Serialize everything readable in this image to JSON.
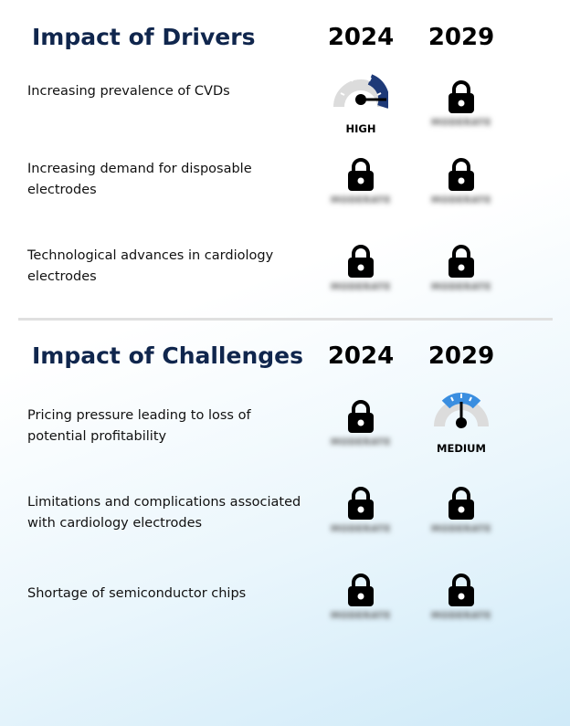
{
  "drivers": {
    "title": "Impact of Drivers",
    "year_1": "2024",
    "year_2": "2029",
    "rows": [
      {
        "label": "Increasing prevalence of CVDs",
        "y2024": "HIGH",
        "y2029": "locked"
      },
      {
        "label": "Increasing demand for disposable electrodes",
        "y2024": "locked",
        "y2029": "locked"
      },
      {
        "label": "Technological advances in cardiology electrodes",
        "y2024": "locked",
        "y2029": "locked"
      }
    ]
  },
  "challenges": {
    "title": "Impact of Challenges",
    "year_1": "2024",
    "year_2": "2029",
    "rows": [
      {
        "label": "Pricing pressure leading to loss of potential profitability",
        "y2024": "locked",
        "y2029": "MEDIUM"
      },
      {
        "label": "Limitations and complications associated with cardiology electrodes",
        "y2024": "locked",
        "y2029": "locked"
      },
      {
        "label": "Shortage of semiconductor chips",
        "y2024": "locked",
        "y2029": "locked"
      }
    ]
  },
  "locked_placeholder": "MODERATE",
  "icons": {
    "lock": "lock-icon",
    "gauge": "gauge-icon"
  },
  "colors": {
    "title": "#10264d",
    "high": "#1e3a78",
    "medium": "#3a8ee0",
    "gauge_track": "#dcdcdc"
  }
}
